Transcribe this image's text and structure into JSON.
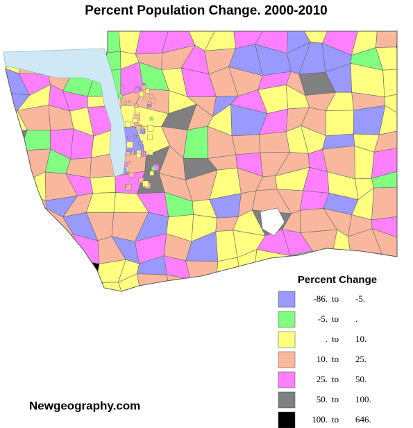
{
  "title": "Percent Population Change. 2000-2010",
  "legend": {
    "title": "Percent Change",
    "separator": "to",
    "items": [
      {
        "from": "-86.",
        "to": "-5.",
        "color": "#9999ff"
      },
      {
        "from": "-5.",
        "to": ".",
        "color": "#80ff80"
      },
      {
        "from": ".",
        "to": "10.",
        "color": "#ffff80"
      },
      {
        "from": "10.",
        "to": "25.",
        "color": "#f9b89e"
      },
      {
        "from": "25.",
        "to": "50.",
        "color": "#ff80ff"
      },
      {
        "from": "50.",
        "to": "100.",
        "color": "#808080"
      },
      {
        "from": "100.",
        "to": "646.",
        "color": "#000000"
      }
    ]
  },
  "source": "Newgeography.com"
}
